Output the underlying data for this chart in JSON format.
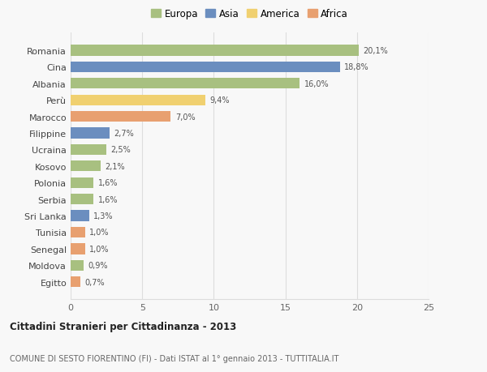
{
  "categories": [
    "Romania",
    "Cina",
    "Albania",
    "Perù",
    "Marocco",
    "Filippine",
    "Ucraina",
    "Kosovo",
    "Polonia",
    "Serbia",
    "Sri Lanka",
    "Tunisia",
    "Senegal",
    "Moldova",
    "Egitto"
  ],
  "values": [
    20.1,
    18.8,
    16.0,
    9.4,
    7.0,
    2.7,
    2.5,
    2.1,
    1.6,
    1.6,
    1.3,
    1.0,
    1.0,
    0.9,
    0.7
  ],
  "colors": [
    "#a8c080",
    "#6b8ebf",
    "#a8c080",
    "#f0d070",
    "#e8a070",
    "#6b8ebf",
    "#a8c080",
    "#a8c080",
    "#a8c080",
    "#a8c080",
    "#6b8ebf",
    "#e8a070",
    "#e8a070",
    "#a8c080",
    "#e8a070"
  ],
  "legend": [
    {
      "label": "Europa",
      "color": "#a8c080"
    },
    {
      "label": "Asia",
      "color": "#6b8ebf"
    },
    {
      "label": "America",
      "color": "#f0d070"
    },
    {
      "label": "Africa",
      "color": "#e8a070"
    }
  ],
  "xlim": [
    0,
    25
  ],
  "xticks": [
    0,
    5,
    10,
    15,
    20,
    25
  ],
  "title": "Cittadini Stranieri per Cittadinanza - 2013",
  "subtitle": "COMUNE DI SESTO FIORENTINO (FI) - Dati ISTAT al 1° gennaio 2013 - TUTTITALIA.IT",
  "background_color": "#f8f8f8",
  "grid_color": "#dddddd"
}
